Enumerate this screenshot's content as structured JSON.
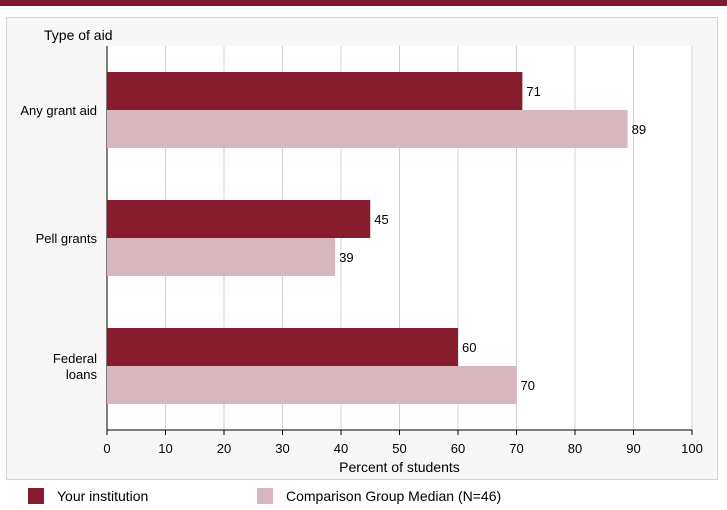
{
  "chart_data": {
    "type": "bar",
    "orientation": "horizontal",
    "y_axis_title": "Type of aid",
    "xlabel": "Percent of students",
    "xlim": [
      0,
      100
    ],
    "xticks": [
      "0",
      "10",
      "20",
      "30",
      "40",
      "50",
      "60",
      "70",
      "80",
      "90",
      "100"
    ],
    "grid": true,
    "categories": [
      "Any grant aid",
      "Pell grants",
      "Federal loans"
    ],
    "category_label_lines": [
      [
        "Any grant aid"
      ],
      [
        "Pell grants"
      ],
      [
        "Federal",
        "loans"
      ]
    ],
    "series": [
      {
        "name": "Your institution",
        "color": "#861c2e",
        "values": [
          71,
          45,
          60
        ]
      },
      {
        "name": "Comparison Group Median (N=46)",
        "color": "#d8b6bd",
        "values": [
          89,
          39,
          70
        ]
      }
    ],
    "legend_placement": "bottom"
  }
}
